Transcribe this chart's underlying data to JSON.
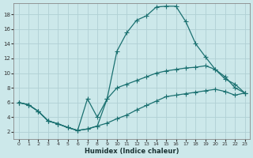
{
  "xlabel": "Humidex (Indice chaleur)",
  "background_color": "#cce8ea",
  "grid_color": "#b0d0d4",
  "line_color": "#1a7070",
  "xlim": [
    -0.5,
    23.5
  ],
  "ylim": [
    1.0,
    19.5
  ],
  "xticks": [
    0,
    1,
    2,
    3,
    4,
    5,
    6,
    7,
    8,
    9,
    10,
    11,
    12,
    13,
    14,
    15,
    16,
    17,
    18,
    19,
    20,
    21,
    22,
    23
  ],
  "yticks": [
    2,
    4,
    6,
    8,
    10,
    12,
    14,
    16,
    18
  ],
  "line1_x": [
    0,
    1,
    2,
    3,
    4,
    5,
    6,
    7,
    8,
    9,
    10,
    11,
    12,
    13,
    14,
    15,
    16,
    17,
    18,
    19,
    20,
    21,
    22,
    23
  ],
  "line1_y": [
    6.0,
    5.7,
    4.8,
    3.5,
    3.1,
    2.6,
    2.2,
    2.4,
    2.8,
    3.2,
    3.8,
    4.3,
    5.0,
    5.6,
    6.2,
    6.8,
    7.0,
    7.2,
    7.4,
    7.6,
    7.8,
    7.5,
    7.0,
    7.3
  ],
  "line2_x": [
    0,
    1,
    2,
    3,
    4,
    5,
    6,
    7,
    8,
    9,
    10,
    11,
    12,
    13,
    14,
    15,
    16,
    17,
    18,
    19,
    20,
    21,
    22,
    23
  ],
  "line2_y": [
    6.0,
    5.7,
    4.8,
    3.5,
    3.1,
    2.6,
    2.2,
    6.5,
    4.0,
    6.5,
    8.0,
    8.5,
    9.0,
    9.5,
    10.0,
    10.3,
    10.5,
    10.7,
    10.8,
    11.0,
    10.5,
    9.2,
    8.5,
    7.3
  ],
  "line3_x": [
    0,
    1,
    2,
    3,
    4,
    5,
    6,
    7,
    8,
    9,
    10,
    11,
    12,
    13,
    14,
    15,
    16,
    17,
    18,
    19,
    20,
    21,
    22,
    23
  ],
  "line3_y": [
    6.0,
    5.7,
    4.8,
    3.5,
    3.1,
    2.6,
    2.2,
    2.4,
    2.8,
    6.5,
    13.0,
    15.5,
    17.2,
    17.8,
    19.0,
    19.1,
    19.1,
    17.0,
    14.0,
    12.2,
    10.5,
    9.5,
    8.0,
    7.3
  ]
}
